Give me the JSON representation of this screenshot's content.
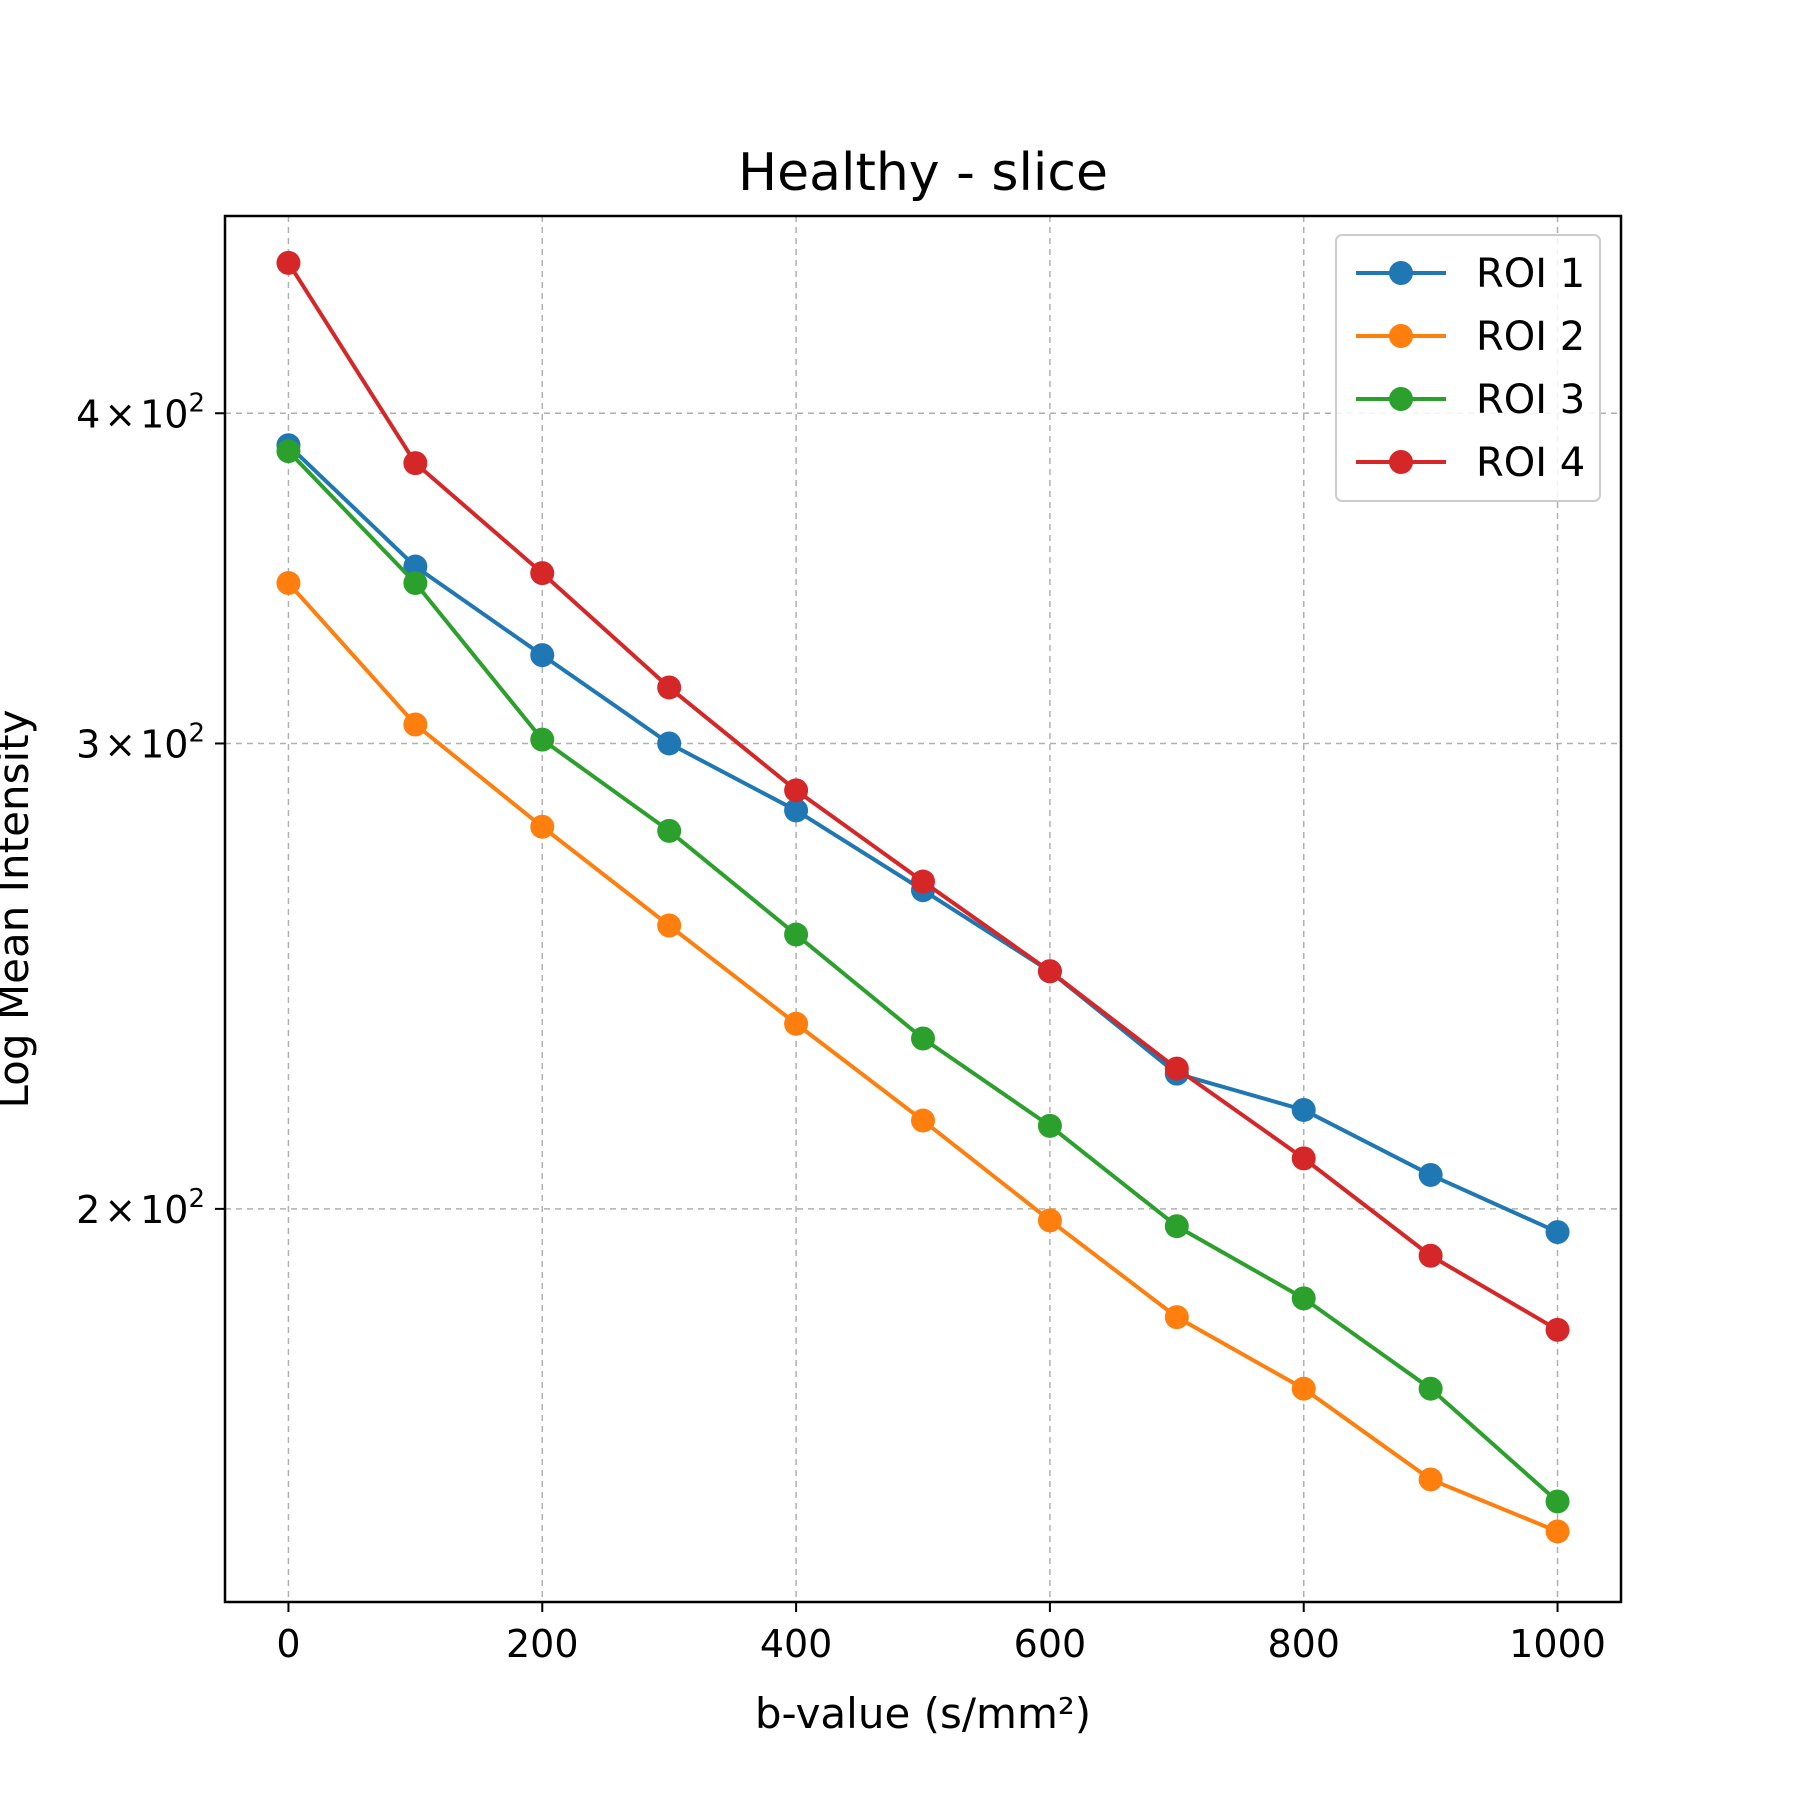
{
  "chart_data": {
    "type": "line",
    "title": "Healthy - slice",
    "xlabel": "b-value (s/mm²)",
    "ylabel": "Log Mean Intensity",
    "yscale": "log",
    "xlim": [
      -50,
      1050
    ],
    "ylim": [
      142,
      475
    ],
    "grid": true,
    "legend_position": "top-right",
    "x": [
      0,
      100,
      200,
      300,
      400,
      500,
      600,
      700,
      800,
      900,
      1000
    ],
    "x_ticks": [
      {
        "value": 0,
        "label": "0"
      },
      {
        "value": 200,
        "label": "200"
      },
      {
        "value": 400,
        "label": "400"
      },
      {
        "value": 600,
        "label": "600"
      },
      {
        "value": 800,
        "label": "800"
      },
      {
        "value": 1000,
        "label": "1000"
      }
    ],
    "y_ticks": [
      {
        "value": 200,
        "mantissa": "2",
        "base": "10",
        "exp": "2"
      },
      {
        "value": 300,
        "mantissa": "3",
        "base": "10",
        "exp": "2"
      },
      {
        "value": 400,
        "mantissa": "4",
        "base": "10",
        "exp": "2"
      }
    ],
    "series": [
      {
        "name": "ROI 1",
        "color": "#1f77b4",
        "values": [
          389,
          350,
          324,
          300,
          283,
          264,
          246,
          225,
          218,
          206,
          196
        ]
      },
      {
        "name": "ROI 2",
        "color": "#ff7f0e",
        "values": [
          345,
          305,
          279,
          256,
          235,
          216,
          198,
          182,
          171,
          158,
          151
        ]
      },
      {
        "name": "ROI 3",
        "color": "#2ca02c",
        "values": [
          387,
          345,
          301,
          278,
          254,
          232,
          215,
          197,
          185,
          171,
          155
        ]
      },
      {
        "name": "ROI 4",
        "color": "#d62728",
        "values": [
          456,
          383,
          348,
          315,
          288,
          266,
          246,
          226,
          209,
          192,
          180
        ]
      }
    ]
  }
}
